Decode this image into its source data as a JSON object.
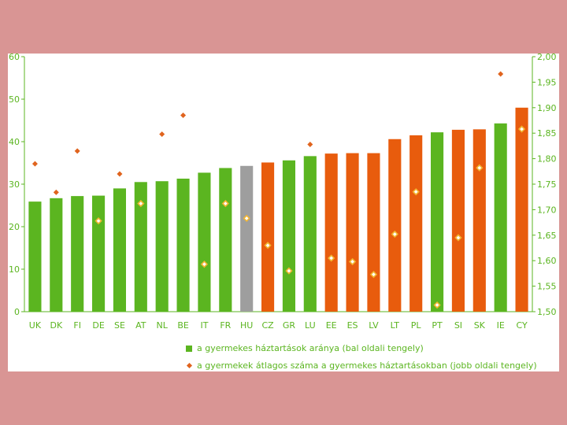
{
  "colors": {
    "green": "#5bb520",
    "orange": "#e85c0d",
    "gray": "#9e9e9e",
    "marker_fill": "#ffffff",
    "marker_stroke": "#f2b531",
    "marker_solid": "#e0641e",
    "axis": "#5bb520"
  },
  "chart_data": {
    "type": "bar",
    "categories": [
      "UK",
      "DK",
      "FI",
      "DE",
      "SE",
      "AT",
      "NL",
      "BE",
      "IT",
      "FR",
      "HU",
      "CZ",
      "GR",
      "LU",
      "EE",
      "ES",
      "LV",
      "LT",
      "PL",
      "PT",
      "SI",
      "SK",
      "IE",
      "CY"
    ],
    "bar_colors": [
      "green",
      "green",
      "green",
      "green",
      "green",
      "green",
      "green",
      "green",
      "green",
      "green",
      "gray",
      "orange",
      "green",
      "green",
      "orange",
      "orange",
      "orange",
      "orange",
      "orange",
      "green",
      "orange",
      "orange",
      "green",
      "orange"
    ],
    "series": [
      {
        "name": "a gyermekes háztartások aránya (bal oldali tengely)",
        "axis": "left",
        "values": [
          25.9,
          26.7,
          27.2,
          27.3,
          29.0,
          30.5,
          30.7,
          31.3,
          32.7,
          33.8,
          34.3,
          35.1,
          35.6,
          36.6,
          37.2,
          37.3,
          37.3,
          40.6,
          41.5,
          42.2,
          42.8,
          42.9,
          44.3,
          48.0
        ]
      },
      {
        "name": "a gyermekek átlagos száma a gyermekes háztartásokban (jobb oldali tengely)",
        "axis": "right",
        "values": [
          1.79,
          1.734,
          1.815,
          1.678,
          1.77,
          1.712,
          1.848,
          1.885,
          1.593,
          1.712,
          1.683,
          1.63,
          1.58,
          1.828,
          1.605,
          1.598,
          1.573,
          1.652,
          1.735,
          1.513,
          1.645,
          1.782,
          1.966,
          1.858
        ],
        "marker_style": [
          "solid",
          "solid",
          "solid",
          "hollow",
          "solid",
          "hollow",
          "solid",
          "solid",
          "hollow",
          "hollow",
          "hollow",
          "hollow",
          "hollow",
          "solid",
          "hollow",
          "hollow",
          "hollow",
          "hollow",
          "hollow",
          "hollow",
          "hollow",
          "hollow",
          "solid",
          "hollow"
        ]
      }
    ],
    "left_axis": {
      "min": 0,
      "max": 60,
      "ticks": [
        "0",
        "10",
        "20",
        "30",
        "40",
        "50",
        "60"
      ]
    },
    "right_axis": {
      "min": 1.5,
      "max": 2.0,
      "ticks": [
        "1,50",
        "1,55",
        "1,60",
        "1,65",
        "1,70",
        "1,75",
        "1,80",
        "1,85",
        "1,90",
        "1,95",
        "2,00"
      ]
    },
    "title": "",
    "xlabel": "",
    "ylabel": "",
    "legend_position": "bottom",
    "grid": false
  },
  "legend": {
    "bars": "a gyermekes háztartások aránya (bal oldali tengely)",
    "markers": "a gyermekek átlagos száma a gyermekes háztartásokban (jobb oldali tengely)"
  }
}
